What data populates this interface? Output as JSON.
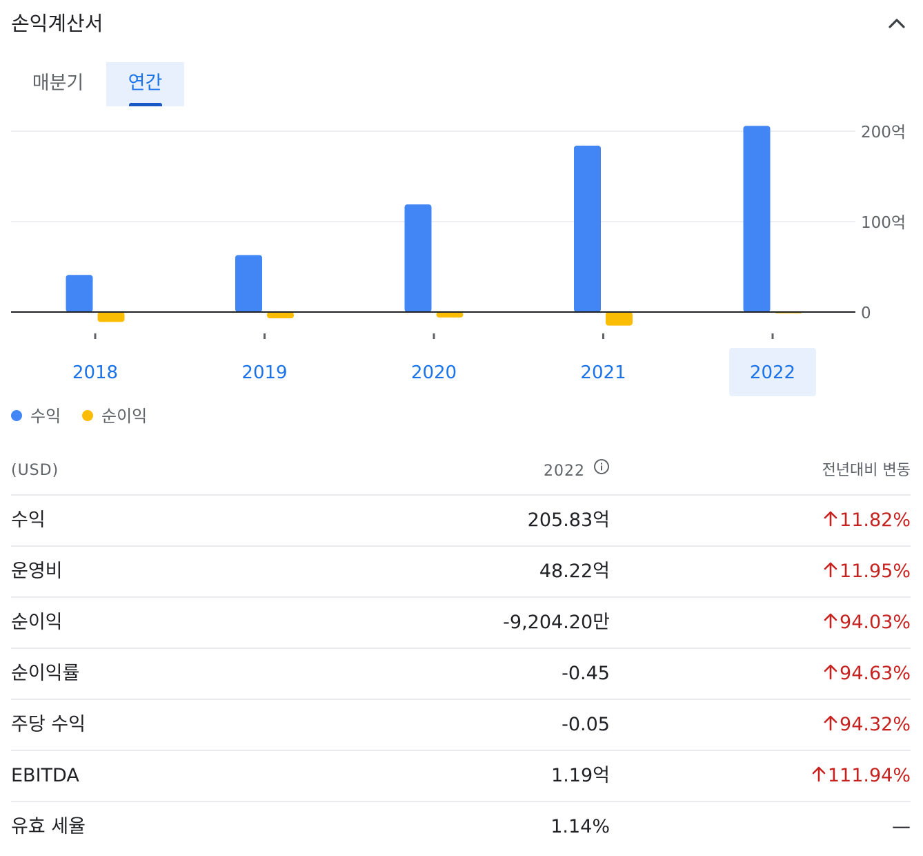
{
  "section": {
    "title": "손익계산서",
    "collapse_icon": "chevron-up-icon"
  },
  "tabs": [
    {
      "label": "매분기",
      "selected": false
    },
    {
      "label": "연간",
      "selected": true
    }
  ],
  "colors": {
    "revenue": "#4285f4",
    "net_income": "#fbbc04",
    "accent": "#1a73e8",
    "positive_change": "#c5221f",
    "selected_bg": "#e8f0fe"
  },
  "chart_data": {
    "type": "bar",
    "categories": [
      "2018",
      "2019",
      "2020",
      "2021",
      "2022"
    ],
    "selected_category": "2022",
    "y_unit": "억",
    "y_ticks": [
      "200억",
      "100억",
      "0"
    ],
    "ylim": [
      -15,
      200
    ],
    "grid": true,
    "y_axis_side": "right",
    "legend_position": "bottom-left",
    "series": [
      {
        "name": "수익",
        "color": "#4285f4",
        "values": [
          41,
          63,
          119,
          184,
          205.83
        ]
      },
      {
        "name": "순이익",
        "color": "#fbbc04",
        "values": [
          -11,
          -7,
          -6,
          -15,
          -0.92
        ]
      }
    ]
  },
  "legend": [
    {
      "label": "수익",
      "color": "#4285f4"
    },
    {
      "label": "순이익",
      "color": "#fbbc04"
    }
  ],
  "table": {
    "unit_label": "(USD)",
    "year_label": "2022",
    "info_icon": "info-icon",
    "change_label": "전년대비 변동",
    "rows": [
      {
        "label": "수익",
        "value": "205.83억",
        "change": "11.82%",
        "direction": "up"
      },
      {
        "label": "운영비",
        "value": "48.22억",
        "change": "11.95%",
        "direction": "up"
      },
      {
        "label": "순이익",
        "value": "-9,204.20만",
        "change": "94.03%",
        "direction": "up"
      },
      {
        "label": "순이익률",
        "value": "-0.45",
        "change": "94.63%",
        "direction": "up"
      },
      {
        "label": "주당 수익",
        "value": "-0.05",
        "change": "94.32%",
        "direction": "up"
      },
      {
        "label": "EBITDA",
        "value": "1.19억",
        "change": "111.94%",
        "direction": "up"
      },
      {
        "label": "유효 세율",
        "value": "1.14%",
        "change": "—",
        "direction": "none"
      }
    ]
  }
}
